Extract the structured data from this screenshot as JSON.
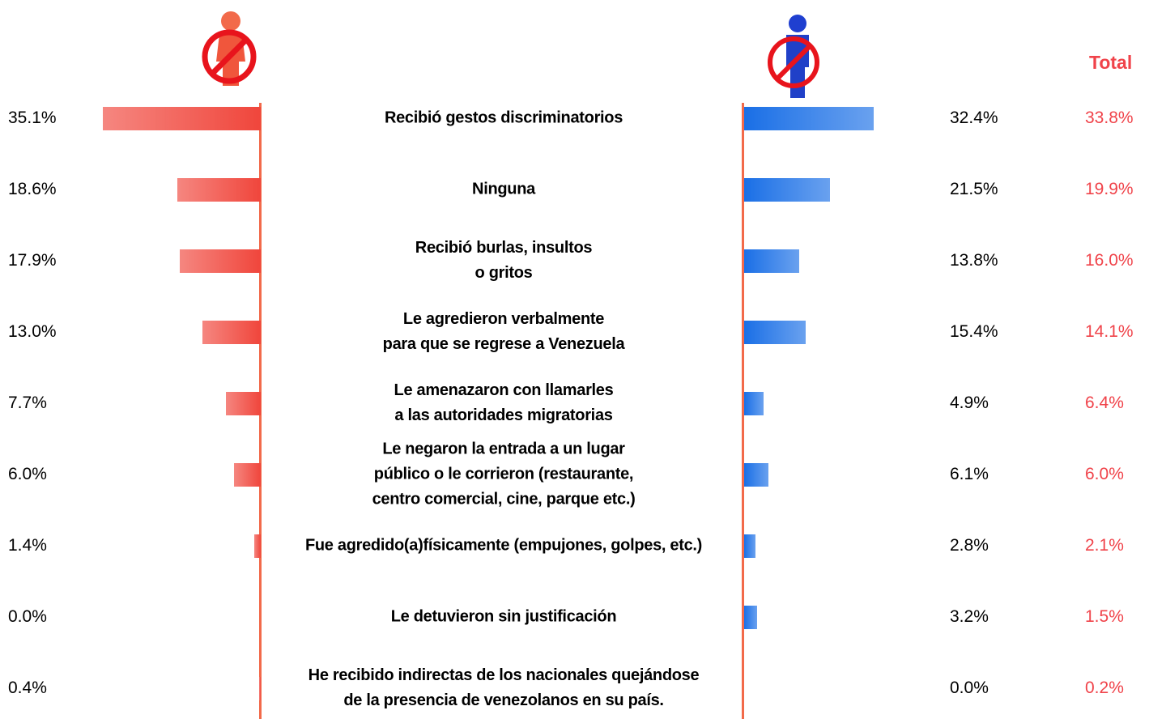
{
  "chart_data": {
    "type": "butterfly-bar",
    "total_title": "Total",
    "categories": [
      "Recibió gestos discriminatorios",
      "Ninguna",
      "Recibió burlas, insultos\no gritos",
      "Le agredieron verbalmente\npara que se regrese a Venezuela",
      "Le amenazaron con llamarles\na las autoridades migratorias",
      "Le negaron la entrada a un lugar\npúblico o le corrieron (restaurante,\ncentro comercial, cine, parque etc.)",
      "Fue agredido(a)físicamente (empujones, golpes, etc.)",
      "Le detuvieron sin justificación",
      "He recibido indirectas de los nacionales quejándose\nde la presencia de venezolanos en su país."
    ],
    "series": [
      {
        "color": "#f0463c",
        "side": "left",
        "values": [
          35.1,
          18.6,
          17.9,
          13.0,
          7.7,
          6.0,
          1.4,
          0.0,
          0.4
        ],
        "value_labels": [
          "35.1%",
          "18.6%",
          "17.9%",
          "13.0%",
          "7.7%",
          "6.0%",
          "1.4%",
          "0.0%",
          "0.4%"
        ]
      },
      {
        "color": "#1a6fe6",
        "side": "right",
        "values": [
          32.4,
          21.5,
          13.8,
          15.4,
          4.9,
          6.1,
          2.8,
          3.2,
          0.0
        ],
        "value_labels": [
          "32.4%",
          "21.5%",
          "13.8%",
          "15.4%",
          "4.9%",
          "6.1%",
          "2.8%",
          "3.2%",
          "0.0%"
        ]
      }
    ],
    "total": {
      "color": "#f0434a",
      "values": [
        33.8,
        19.9,
        16.0,
        14.1,
        6.4,
        6.0,
        2.1,
        1.5,
        0.2
      ],
      "value_labels": [
        "33.8%",
        "19.9%",
        "16.0%",
        "14.1%",
        "6.4%",
        "6.0%",
        "2.1%",
        "1.5%",
        "0.2%"
      ]
    }
  }
}
